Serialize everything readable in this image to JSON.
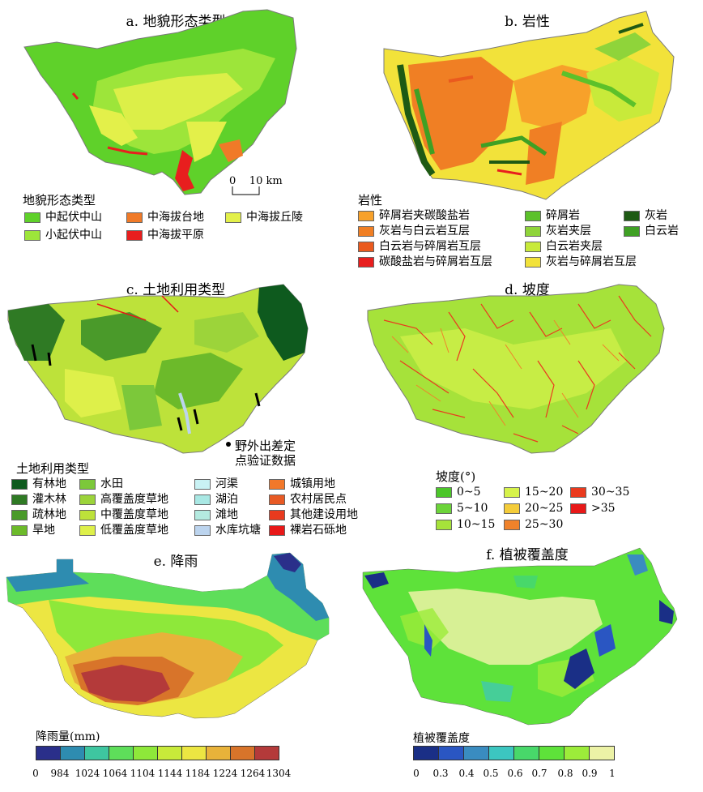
{
  "panels": {
    "a": {
      "title": "a. 地貌形态类型",
      "legend_title": "地貌形态类型",
      "scale_label": "0    10 km",
      "items": [
        {
          "label": "中起伏中山",
          "color": "#5fd12a"
        },
        {
          "label": "中海拔台地",
          "color": "#f07a28"
        },
        {
          "label": "中海拔丘陵",
          "color": "#e3f04a"
        },
        {
          "label": "小起伏中山",
          "color": "#9de53a"
        },
        {
          "label": "中海拔平原",
          "color": "#e81e1e"
        }
      ]
    },
    "b": {
      "title": "b. 岩性",
      "legend_title": "岩性",
      "items": [
        {
          "label": "碎屑岩夹碳酸盐岩",
          "color": "#f7a12a"
        },
        {
          "label": "碎屑岩",
          "color": "#5cc12a"
        },
        {
          "label": "灰岩",
          "color": "#1e5a14"
        },
        {
          "label": "灰岩与白云岩互层",
          "color": "#f07f24"
        },
        {
          "label": "灰岩夹层",
          "color": "#8fd43a"
        },
        {
          "label": "白云岩",
          "color": "#3fa024"
        },
        {
          "label": "白云岩与碎屑岩互层",
          "color": "#ea5a1e"
        },
        {
          "label": "白云岩夹层",
          "color": "#c8ea3a"
        },
        {
          "label": "碳酸盐岩与碎屑岩互层",
          "color": "#e81e1e"
        },
        {
          "label": "灰岩与碎屑岩互层",
          "color": "#f2e23a"
        }
      ]
    },
    "c": {
      "title": "c. 土地利用类型",
      "legend_title": "土地利用类型",
      "validation_label": "野外出差定\n点验证数据",
      "items": [
        {
          "label": "有林地",
          "color": "#0e5a1e"
        },
        {
          "label": "水田",
          "color": "#7cc83a"
        },
        {
          "label": "河渠",
          "color": "#c9f2f4"
        },
        {
          "label": "城镇用地",
          "color": "#f2782a"
        },
        {
          "label": "灌木林",
          "color": "#2f7a24"
        },
        {
          "label": "高覆盖度草地",
          "color": "#9cd43a"
        },
        {
          "label": "湖泊",
          "color": "#a9e8e4"
        },
        {
          "label": "农村居民点",
          "color": "#e85a24"
        },
        {
          "label": "疏林地",
          "color": "#4a9a2a"
        },
        {
          "label": "中覆盖度草地",
          "color": "#bde23a"
        },
        {
          "label": "滩地",
          "color": "#b4eae0"
        },
        {
          "label": "其他建设用地",
          "color": "#e83a1e"
        },
        {
          "label": "旱地",
          "color": "#6cba2a"
        },
        {
          "label": "低覆盖度草地",
          "color": "#def04a"
        },
        {
          "label": "水库坑塘",
          "color": "#bcd4ee"
        },
        {
          "label": "裸岩石砾地",
          "color": "#e81818"
        }
      ]
    },
    "d": {
      "title": "d. 坡度",
      "legend_title": "坡度(°)",
      "items": [
        {
          "label": "0~5",
          "color": "#4cc62a"
        },
        {
          "label": "15~20",
          "color": "#d6f24a"
        },
        {
          "label": "30~35",
          "color": "#ea3a1e"
        },
        {
          "label": "5~10",
          "color": "#6cd43a"
        },
        {
          "label": "20~25",
          "color": "#f4cc3a"
        },
        {
          "label": ">35",
          "color": "#e81818"
        },
        {
          "label": "10~15",
          "color": "#a6e23a"
        },
        {
          "label": "25~30",
          "color": "#f0822a"
        }
      ]
    },
    "e": {
      "title": "e. 降雨",
      "legend_title": "降雨量(mm)",
      "ticks": [
        "0",
        "984",
        "1024",
        "1064",
        "1104",
        "1144",
        "1184",
        "1224",
        "1264",
        "1304"
      ],
      "colors": [
        "#2a2f8a",
        "#2e8cb0",
        "#3ec6a0",
        "#5ede5a",
        "#8ee83a",
        "#c8ea3a",
        "#ece642",
        "#e8b23a",
        "#d8742a",
        "#b43a3a"
      ]
    },
    "f": {
      "title": "f. 植被覆盖度",
      "legend_title": "植被覆盖度",
      "ticks": [
        "0",
        "0.3",
        "0.4",
        "0.5",
        "0.6",
        "0.7",
        "0.8",
        "0.9",
        "1"
      ],
      "colors": [
        "#1a2f86",
        "#2a56c2",
        "#3a8cc0",
        "#3cc6c0",
        "#48d86a",
        "#5ee23a",
        "#9cec3a",
        "#ecf2a6"
      ]
    }
  }
}
